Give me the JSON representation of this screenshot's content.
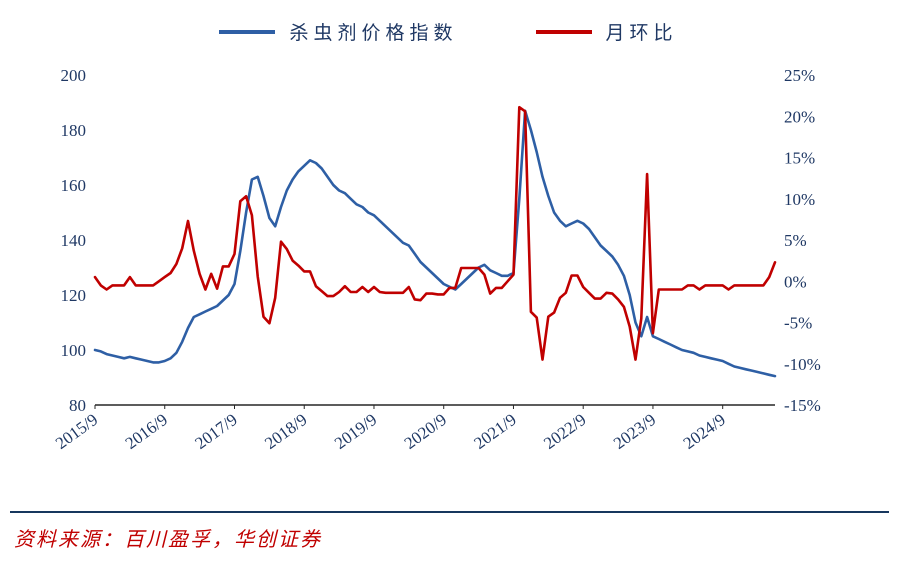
{
  "chart_data": {
    "type": "line",
    "title": "",
    "x_start": "2015/9",
    "x_frequency": "monthly",
    "x_tick_labels": [
      "2015/9",
      "2016/9",
      "2017/9",
      "2018/9",
      "2019/9",
      "2020/9",
      "2021/9",
      "2022/9",
      "2023/9",
      "2024/9"
    ],
    "x_tick_indices": [
      0,
      12,
      24,
      36,
      48,
      60,
      72,
      84,
      96,
      108
    ],
    "left_axis": {
      "min": 80,
      "max": 200,
      "tick_values": [
        200,
        180,
        160,
        140,
        120,
        100,
        80
      ]
    },
    "right_axis": {
      "min": -15,
      "max": 25,
      "tick_values": [
        25,
        20,
        15,
        10,
        5,
        0,
        -5,
        -10,
        -15
      ],
      "suffix": "%"
    },
    "grid": false,
    "legend_position": "top-center",
    "series": [
      {
        "name": "杀虫剂价格指数",
        "color": "#2E5FA5",
        "axis": "left",
        "values": [
          100,
          99.5,
          98.5,
          98,
          97.5,
          97,
          97.5,
          97,
          96.5,
          96,
          95.5,
          95.5,
          96,
          97,
          99,
          103,
          108,
          112,
          113,
          114,
          115,
          116,
          118,
          120,
          124,
          136,
          150,
          162,
          163,
          156,
          148,
          145,
          152,
          158,
          162,
          165,
          167,
          169,
          168,
          166,
          163,
          160,
          158,
          157,
          155,
          153,
          152,
          150,
          149,
          147,
          145,
          143,
          141,
          139,
          138,
          135,
          132,
          130,
          128,
          126,
          124,
          123,
          122,
          124,
          126,
          128,
          130,
          131,
          129,
          128,
          127,
          127,
          128,
          155,
          187,
          180,
          172,
          163,
          156,
          150,
          147,
          145,
          146,
          147,
          146,
          144,
          141,
          138,
          136,
          134,
          131,
          127,
          120,
          110,
          105,
          112,
          105,
          104,
          103,
          102,
          101,
          100,
          99.5,
          99,
          98,
          97.5,
          97,
          96.5,
          96,
          95,
          94,
          93.5,
          93,
          92.5,
          92,
          91.5,
          91,
          90.5
        ]
      },
      {
        "name": "月环比",
        "color": "#C00000",
        "axis": "right",
        "values": [
          0.5,
          -0.5,
          -1,
          -0.5,
          -0.5,
          -0.5,
          0.5,
          -0.5,
          -0.5,
          -0.5,
          -0.5,
          0,
          0.5,
          1,
          2.1,
          4,
          7.3,
          3.7,
          0.9,
          -1,
          0.9,
          -0.9,
          1.8,
          1.8,
          3.3,
          9.7,
          10.3,
          8,
          0.6,
          -4.3,
          -5.1,
          -2,
          4.8,
          3.9,
          2.5,
          1.9,
          1.2,
          1.2,
          -0.6,
          -1.2,
          -1.8,
          -1.8,
          -1.3,
          -0.6,
          -1.3,
          -1.3,
          -0.7,
          -1.3,
          -0.7,
          -1.3,
          -1.4,
          -1.4,
          -1.4,
          -1.4,
          -0.7,
          -2.2,
          -2.3,
          -1.5,
          -1.5,
          -1.6,
          -1.6,
          -0.8,
          -0.8,
          1.6,
          1.6,
          1.6,
          1.6,
          0.8,
          -1.5,
          -0.8,
          -0.8,
          0,
          0.8,
          21.1,
          20.6,
          -3.7,
          -4.4,
          -9.5,
          -4.3,
          -3.8,
          -2,
          -1.4,
          0.7,
          0.7,
          -0.7,
          -1.4,
          -2.1,
          -2.1,
          -1.4,
          -1.5,
          -2.2,
          -3.1,
          -5.5,
          -9.5,
          -4.5,
          13,
          -6.3,
          -1,
          -1,
          -1,
          -1,
          -1,
          -0.5,
          -0.5,
          -1,
          -0.5,
          -0.5,
          -0.5,
          -0.5,
          -1,
          -0.5,
          -0.5,
          -0.5,
          -0.5,
          -0.5,
          -0.5,
          0.5,
          2.3
        ]
      }
    ]
  },
  "colors": {
    "axis_text": "#1F3864",
    "axis_line": "#262626",
    "divider": "#17375E",
    "source_text": "#C00000"
  },
  "source": {
    "text": "资料来源：百川盈孚，华创证券"
  }
}
